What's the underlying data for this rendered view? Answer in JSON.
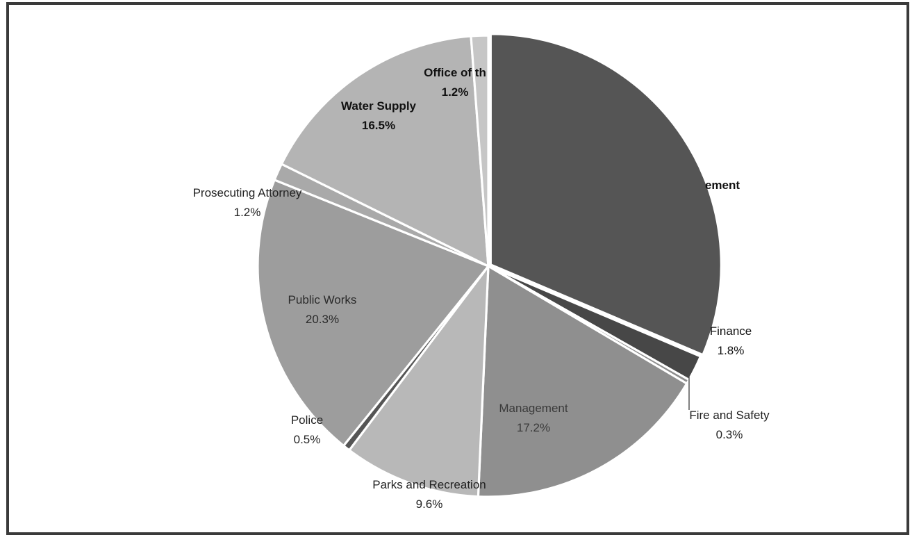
{
  "chart_data": {
    "type": "pie",
    "title": "",
    "start_angle_deg": 0,
    "direction": "clockwise",
    "slices": [
      {
        "name": "Management",
        "pct_label": "",
        "value": 31.4,
        "color": "#555555",
        "label_color": "#111111",
        "bold": true
      },
      {
        "name": "Finance",
        "pct_label": "1.8%",
        "value": 1.8,
        "color": "#474747",
        "label_color": "#111111",
        "bold": false
      },
      {
        "name": "Fire and Safety",
        "pct_label": "0.3%",
        "value": 0.3,
        "color": "#8e8e8e",
        "label_color": "#222222",
        "bold": false
      },
      {
        "name": "Management",
        "pct_label": "17.2%",
        "value": 17.2,
        "color": "#8f8f8f",
        "label_color": "#3a3a3a",
        "bold": false
      },
      {
        "name": "Parks and Recreation",
        "pct_label": "9.6%",
        "value": 9.6,
        "color": "#b8b8b8",
        "label_color": "#222222",
        "bold": false
      },
      {
        "name": "Police",
        "pct_label": "0.5%",
        "value": 0.5,
        "color": "#555555",
        "label_color": "#222222",
        "bold": false
      },
      {
        "name": "Public Works",
        "pct_label": "20.3%",
        "value": 20.3,
        "color": "#9d9d9d",
        "label_color": "#2a2a2a",
        "bold": false
      },
      {
        "name": "Prosecuting Attorney",
        "pct_label": "1.2%",
        "value": 1.2,
        "color": "#a9a9a9",
        "label_color": "#222222",
        "bold": false
      },
      {
        "name": "Water Supply",
        "pct_label": "16.5%",
        "value": 16.5,
        "color": "#b4b4b4",
        "label_color": "#111111",
        "bold": true
      },
      {
        "name": "Office of th",
        "pct_label": "1.2%",
        "value": 1.2,
        "color": "#c6c6c6",
        "label_color": "#111111",
        "bold": true
      }
    ],
    "visible_label_text": {
      "slice0": "ement"
    },
    "legend": "none"
  }
}
